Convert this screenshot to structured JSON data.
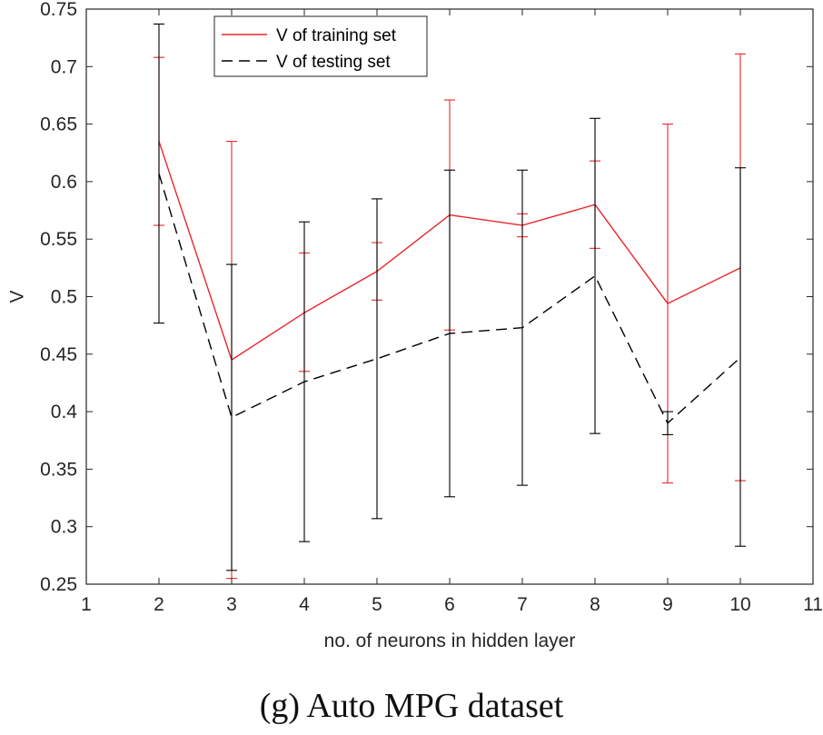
{
  "chart_data": {
    "type": "line",
    "title": "",
    "xlabel": "no. of neurons in hidden layer",
    "ylabel": "V",
    "xlim": [
      1,
      11
    ],
    "ylim": [
      0.25,
      0.75
    ],
    "xticks": [
      "1",
      "2",
      "3",
      "4",
      "5",
      "6",
      "7",
      "8",
      "9",
      "10",
      "11"
    ],
    "yticks": [
      "0.25",
      "0.3",
      "0.35",
      "0.4",
      "0.45",
      "0.5",
      "0.55",
      "0.6",
      "0.65",
      "0.7",
      "0.75"
    ],
    "x": [
      2,
      3,
      4,
      5,
      6,
      7,
      8,
      9,
      10
    ],
    "series": [
      {
        "name": "V of training set",
        "color": "#e8262c",
        "style": "solid",
        "values": [
          0.635,
          0.445,
          0.486,
          0.522,
          0.571,
          0.562,
          0.58,
          0.494,
          0.525
        ],
        "err_low": [
          0.562,
          0.255,
          0.435,
          0.497,
          0.471,
          0.552,
          0.542,
          0.338,
          0.34
        ],
        "err_high": [
          0.708,
          0.635,
          0.538,
          0.547,
          0.671,
          0.572,
          0.618,
          0.65,
          0.711
        ]
      },
      {
        "name": "V of testing set",
        "color": "#000000",
        "style": "dashed",
        "values": [
          0.607,
          0.395,
          0.426,
          0.446,
          0.468,
          0.473,
          0.518,
          0.39,
          0.447
        ],
        "err_low": [
          0.477,
          0.262,
          0.287,
          0.307,
          0.326,
          0.336,
          0.381,
          0.38,
          0.283
        ],
        "err_high": [
          0.737,
          0.528,
          0.565,
          0.585,
          0.61,
          0.61,
          0.655,
          0.4,
          0.612
        ]
      }
    ],
    "legend_position": "top-left",
    "caption": "(g) Auto MPG dataset"
  }
}
